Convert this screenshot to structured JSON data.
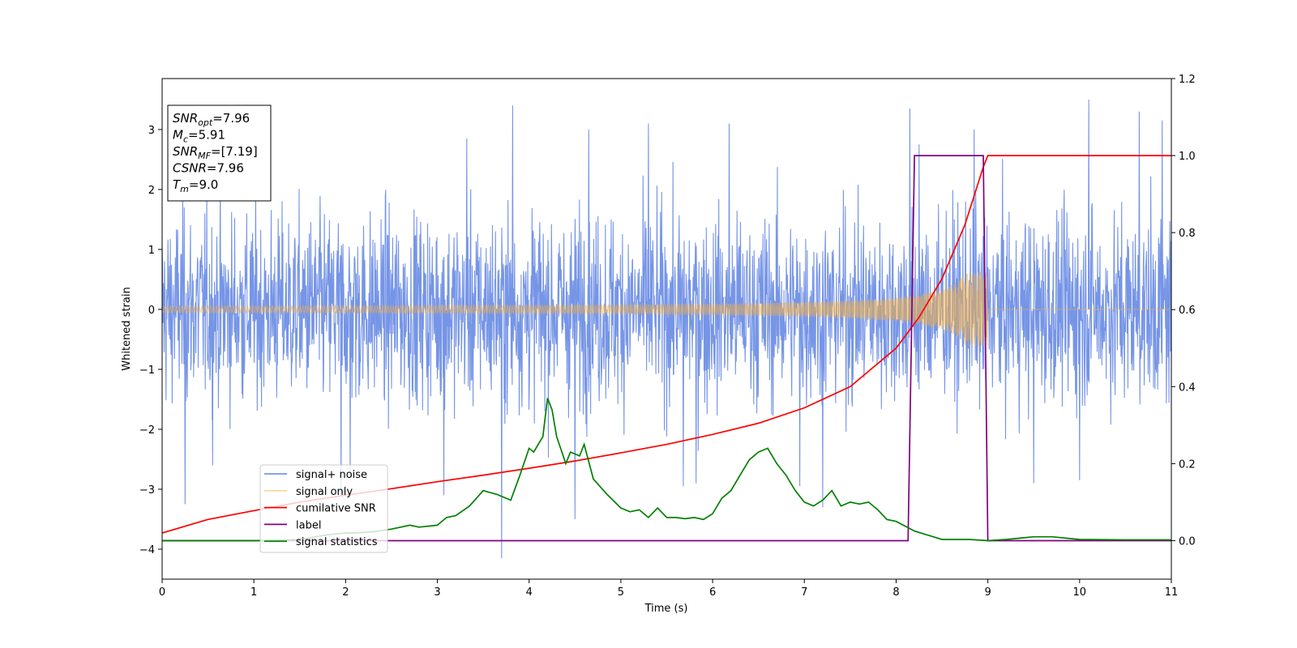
{
  "chart_data": {
    "type": "line",
    "xlabel": "Time (s)",
    "ylabel": "Whitened strain",
    "xlim": [
      0,
      11
    ],
    "ylim": [
      -4.5,
      3.85
    ],
    "y2lim": [
      -0.1,
      1.2
    ],
    "x_ticks": [
      0,
      1,
      2,
      3,
      4,
      5,
      6,
      7,
      8,
      9,
      10,
      11
    ],
    "y_ticks": [
      -4,
      -3,
      -2,
      -1,
      0,
      1,
      2,
      3
    ],
    "y2_ticks": [
      "0.0",
      "0.2",
      "0.4",
      "0.6",
      "0.8",
      "1.0",
      "1.2"
    ],
    "legend_position": "lower-left",
    "info_box": [
      {
        "base": "SNR",
        "sub": "opt",
        "value": "=7.96"
      },
      {
        "base": "M",
        "sub": "c",
        "value": "=5.91"
      },
      {
        "base": "SNR",
        "sub": "MF",
        "value": "=[7.19]"
      },
      {
        "base": "CSNR",
        "sub": "",
        "value": "=7.96"
      },
      {
        "base": "T",
        "sub": "m",
        "value": "=9.0"
      }
    ],
    "series": [
      {
        "name": "signal+ noise",
        "color": "#6f8fe6",
        "axis": "left",
        "kind": "noise",
        "x_range": [
          0,
          11
        ],
        "envelope": 1.0,
        "peaks": [
          [
            0.25,
            -3.25
          ],
          [
            0.55,
            -2.6
          ],
          [
            1.95,
            -3.05
          ],
          [
            2.05,
            -2.85
          ],
          [
            3.07,
            -3.1
          ],
          [
            3.32,
            2.85
          ],
          [
            3.7,
            -4.15
          ],
          [
            3.82,
            3.4
          ],
          [
            4.5,
            -3.5
          ],
          [
            4.65,
            3.0
          ],
          [
            5.3,
            3.1
          ],
          [
            5.68,
            -2.95
          ],
          [
            5.82,
            -2.9
          ],
          [
            6.18,
            3.1
          ],
          [
            6.95,
            -2.95
          ],
          [
            7.2,
            -3.3
          ],
          [
            8.15,
            3.35
          ],
          [
            8.25,
            2.75
          ],
          [
            8.85,
            3.0
          ],
          [
            9.5,
            -2.9
          ],
          [
            10.0,
            -2.85
          ],
          [
            10.1,
            3.5
          ],
          [
            10.65,
            3.3
          ],
          [
            10.9,
            3.15
          ]
        ]
      },
      {
        "name": "signal only",
        "color": "#f5b041",
        "axis": "left",
        "kind": "chirp",
        "x_range": [
          0,
          9.0
        ],
        "amp_start": 0.03,
        "amp_end": 0.62
      },
      {
        "name": "cumilative SNR",
        "color": "#ff0000",
        "axis": "right",
        "x": [
          0,
          0.5,
          1,
          1.5,
          2,
          2.5,
          3,
          3.5,
          4,
          4.5,
          5,
          5.5,
          6,
          6.5,
          7,
          7.5,
          8,
          8.25,
          8.5,
          8.75,
          8.95,
          9.0,
          11
        ],
        "y": [
          0.02,
          0.055,
          0.078,
          0.1,
          0.118,
          0.135,
          0.153,
          0.17,
          0.188,
          0.207,
          0.228,
          0.25,
          0.276,
          0.305,
          0.345,
          0.4,
          0.5,
          0.58,
          0.68,
          0.82,
          0.97,
          1.0,
          1.0
        ]
      },
      {
        "name": "label",
        "color": "#800080",
        "axis": "right",
        "x": [
          0,
          8.13,
          8.2,
          8.95,
          9.0,
          11
        ],
        "y": [
          0,
          0,
          1,
          1,
          0,
          0
        ]
      },
      {
        "name": "signal statistics",
        "color": "#008000",
        "axis": "right",
        "x": [
          0,
          0.5,
          1.0,
          1.5,
          1.8,
          2.0,
          2.1,
          2.3,
          2.5,
          2.7,
          2.8,
          3.0,
          3.1,
          3.2,
          3.35,
          3.5,
          3.65,
          3.8,
          3.9,
          4.0,
          4.05,
          4.1,
          4.15,
          4.2,
          4.25,
          4.3,
          4.4,
          4.45,
          4.55,
          4.6,
          4.7,
          4.85,
          5.0,
          5.1,
          5.2,
          5.3,
          5.4,
          5.5,
          5.6,
          5.7,
          5.8,
          5.9,
          6.0,
          6.1,
          6.2,
          6.3,
          6.4,
          6.5,
          6.6,
          6.7,
          6.8,
          6.9,
          7.0,
          7.1,
          7.2,
          7.3,
          7.4,
          7.5,
          7.6,
          7.7,
          7.8,
          7.9,
          8.0,
          8.2,
          8.5,
          8.8,
          9.0,
          9.2,
          9.5,
          9.7,
          10.0,
          10.5,
          11.0
        ],
        "y": [
          0.0,
          0.0,
          0.0,
          0.003,
          0.015,
          0.02,
          0.02,
          0.023,
          0.03,
          0.04,
          0.035,
          0.04,
          0.06,
          0.065,
          0.09,
          0.13,
          0.12,
          0.105,
          0.17,
          0.24,
          0.23,
          0.25,
          0.27,
          0.37,
          0.34,
          0.27,
          0.2,
          0.23,
          0.22,
          0.25,
          0.16,
          0.12,
          0.085,
          0.075,
          0.08,
          0.06,
          0.085,
          0.06,
          0.06,
          0.057,
          0.06,
          0.055,
          0.07,
          0.11,
          0.13,
          0.17,
          0.21,
          0.23,
          0.24,
          0.2,
          0.17,
          0.13,
          0.1,
          0.09,
          0.105,
          0.13,
          0.09,
          0.1,
          0.095,
          0.1,
          0.08,
          0.055,
          0.05,
          0.025,
          0.003,
          0.003,
          0.0,
          0.003,
          0.01,
          0.01,
          0.003,
          0.002,
          0.002
        ]
      }
    ]
  }
}
